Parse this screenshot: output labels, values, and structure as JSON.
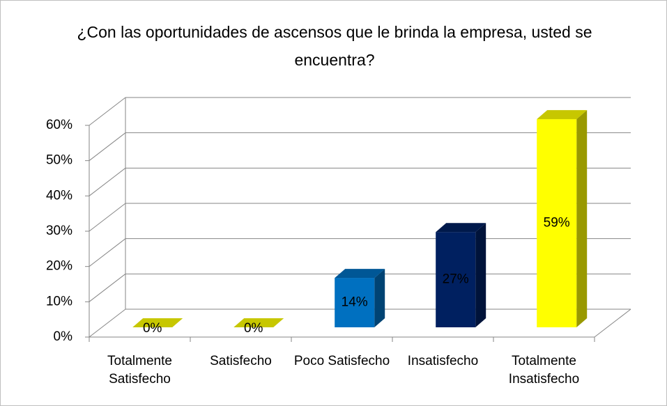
{
  "chart_data": {
    "type": "bar3d",
    "title": "¿Con las oportunidades de ascensos que le brinda la empresa, usted se encuentra?",
    "categories": [
      "Totalmente Satisfecho",
      "Satisfecho",
      "Poco Satisfecho",
      "Insatisfecho",
      "Totalmente Insatisfecho"
    ],
    "values": [
      0,
      0,
      14,
      27,
      59
    ],
    "value_labels": [
      "0%",
      "0%",
      "14%",
      "27%",
      "59%"
    ],
    "colors": [
      "#ffff00",
      "#ffff00",
      "#0070c0",
      "#002060",
      "#ffff00"
    ],
    "ylim": [
      0,
      60
    ],
    "yticks": [
      {
        "value": 0,
        "label": "0%"
      },
      {
        "value": 10,
        "label": "10%"
      },
      {
        "value": 20,
        "label": "20%"
      },
      {
        "value": 30,
        "label": "30%"
      },
      {
        "value": 40,
        "label": "40%"
      },
      {
        "value": 50,
        "label": "50%"
      },
      {
        "value": 60,
        "label": "60%"
      }
    ],
    "grid": true
  }
}
